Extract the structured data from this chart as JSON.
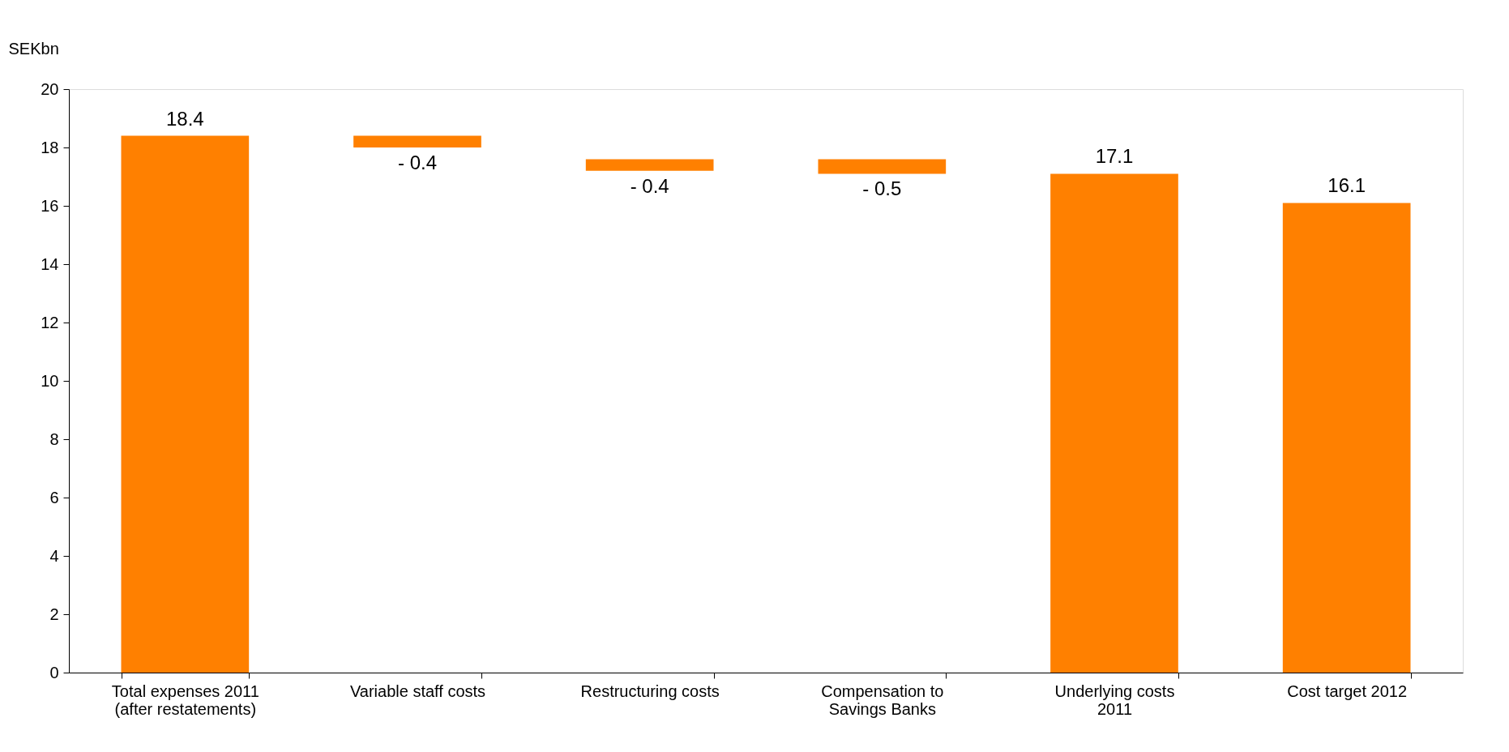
{
  "chart_data": {
    "type": "bar",
    "ylabel": "SEKbn",
    "categories": [
      "Total expenses 2011\n(after restatements)",
      "Variable staff costs",
      "Restructuring costs",
      "Compensation to\nSavings Banks",
      "Underlying costs\n2011",
      "Cost target 2012"
    ],
    "values": [
      18.4,
      -0.4,
      -0.4,
      -0.5,
      17.1,
      16.1
    ],
    "base": [
      0,
      18.4,
      17.6,
      17.6,
      0,
      0
    ],
    "value_labels": [
      "18.4",
      "- 0.4",
      "- 0.4",
      "- 0.5",
      "17.1",
      "16.1"
    ],
    "colors": [
      "#ff8000",
      "#ff8000",
      "#ff8000",
      "#ff8000",
      "#ff8000",
      "#ff8000"
    ],
    "ylim": [
      0,
      20
    ],
    "yticks": [
      0,
      2,
      4,
      6,
      8,
      10,
      12,
      14,
      16,
      18,
      20
    ],
    "grid": false
  }
}
